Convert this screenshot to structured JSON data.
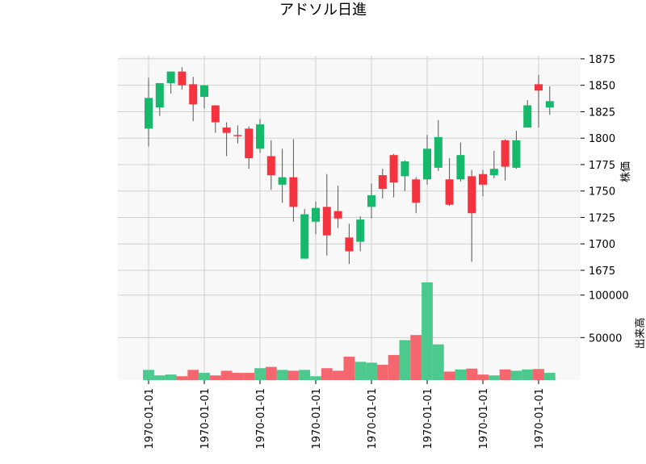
{
  "chart_data": {
    "type": "candlestick",
    "title": "アドソル日進",
    "colors": {
      "up": "#16b86b",
      "down": "#f5333f",
      "up_volume": "#4cc98c",
      "down_volume": "#f6666e",
      "wick": "#555555",
      "panel_bg": "#f8f8f8",
      "grid": "#d0d0d0"
    },
    "price_panel": {
      "ylabel": "株価",
      "ylim": [
        1662,
        1878
      ],
      "yticks": [
        1675,
        1700,
        1725,
        1750,
        1775,
        1800,
        1825,
        1850,
        1875
      ],
      "ytick_labels": [
        "1675",
        "1700",
        "1725",
        "1750",
        "1775",
        "1800",
        "1825",
        "1850",
        "1875"
      ]
    },
    "volume_panel": {
      "ylabel": "出来高",
      "ylim": [
        0,
        113000
      ],
      "yticks": [
        50000,
        100000
      ],
      "ytick_labels": [
        "50000",
        "100000"
      ]
    },
    "x_tick_labels": [
      "1970-01-01",
      "1970-01-01",
      "1970-01-01",
      "1970-01-01",
      "1970-01-01",
      "1970-01-01",
      "1970-01-01",
      "1970-01-01"
    ],
    "x_tick_positions": [
      0,
      5,
      10,
      15,
      20,
      25,
      30,
      35
    ],
    "candles": [
      {
        "open": 1809,
        "high": 1857,
        "low": 1792,
        "close": 1838,
        "volume": 12000
      },
      {
        "open": 1829,
        "high": 1852,
        "low": 1821,
        "close": 1852,
        "volume": 5500
      },
      {
        "open": 1852,
        "high": 1863,
        "low": 1842,
        "close": 1863,
        "volume": 6500
      },
      {
        "open": 1863,
        "high": 1867,
        "low": 1846,
        "close": 1850,
        "volume": 4500
      },
      {
        "open": 1851,
        "high": 1858,
        "low": 1816,
        "close": 1832,
        "volume": 12000
      },
      {
        "open": 1839,
        "high": 1850,
        "low": 1828,
        "close": 1850,
        "volume": 8500
      },
      {
        "open": 1831,
        "high": 1831,
        "low": 1805,
        "close": 1815,
        "volume": 5500
      },
      {
        "open": 1810,
        "high": 1815,
        "low": 1783,
        "close": 1805,
        "volume": 11000
      },
      {
        "open": 1803,
        "high": 1812,
        "low": 1795,
        "close": 1802,
        "volume": 8500
      },
      {
        "open": 1809,
        "high": 1811,
        "low": 1771,
        "close": 1781,
        "volume": 8500
      },
      {
        "open": 1790,
        "high": 1818,
        "low": 1786,
        "close": 1813,
        "volume": 14000
      },
      {
        "open": 1783,
        "high": 1798,
        "low": 1751,
        "close": 1765,
        "volume": 15500
      },
      {
        "open": 1756,
        "high": 1790,
        "low": 1739,
        "close": 1763,
        "volume": 12000
      },
      {
        "open": 1763,
        "high": 1799,
        "low": 1721,
        "close": 1735,
        "volume": 11000
      },
      {
        "open": 1686,
        "high": 1733,
        "low": 1686,
        "close": 1728,
        "volume": 12000
      },
      {
        "open": 1721,
        "high": 1740,
        "low": 1709,
        "close": 1734,
        "volume": 4500
      },
      {
        "open": 1735,
        "high": 1766,
        "low": 1689,
        "close": 1708,
        "volume": 14000
      },
      {
        "open": 1731,
        "high": 1755,
        "low": 1715,
        "close": 1724,
        "volume": 11000
      },
      {
        "open": 1706,
        "high": 1719,
        "low": 1681,
        "close": 1693,
        "volume": 27500
      },
      {
        "open": 1702,
        "high": 1726,
        "low": 1693,
        "close": 1723,
        "volume": 21500
      },
      {
        "open": 1735,
        "high": 1757,
        "low": 1724,
        "close": 1746,
        "volume": 20500
      },
      {
        "open": 1765,
        "high": 1771,
        "low": 1743,
        "close": 1752,
        "volume": 18000
      },
      {
        "open": 1784,
        "high": 1785,
        "low": 1744,
        "close": 1758,
        "volume": 29500
      },
      {
        "open": 1764,
        "high": 1779,
        "low": 1750,
        "close": 1778,
        "volume": 47000
      },
      {
        "open": 1761,
        "high": 1763,
        "low": 1729,
        "close": 1739,
        "volume": 53000
      },
      {
        "open": 1761,
        "high": 1803,
        "low": 1756,
        "close": 1790,
        "volume": 115000
      },
      {
        "open": 1772,
        "high": 1817,
        "low": 1769,
        "close": 1801,
        "volume": 42000
      },
      {
        "open": 1761,
        "high": 1781,
        "low": 1736,
        "close": 1737,
        "volume": 10000
      },
      {
        "open": 1761,
        "high": 1796,
        "low": 1759,
        "close": 1784,
        "volume": 12500
      },
      {
        "open": 1764,
        "high": 1770,
        "low": 1683,
        "close": 1729,
        "volume": 13500
      },
      {
        "open": 1766,
        "high": 1770,
        "low": 1745,
        "close": 1756,
        "volume": 6500
      },
      {
        "open": 1765,
        "high": 1788,
        "low": 1762,
        "close": 1771,
        "volume": 5500
      },
      {
        "open": 1798,
        "high": 1799,
        "low": 1760,
        "close": 1773,
        "volume": 12500
      },
      {
        "open": 1772,
        "high": 1807,
        "low": 1771,
        "close": 1798,
        "volume": 11000
      },
      {
        "open": 1810,
        "high": 1836,
        "low": 1810,
        "close": 1831,
        "volume": 12500
      },
      {
        "open": 1851,
        "high": 1860,
        "low": 1810,
        "close": 1845,
        "volume": 13000
      },
      {
        "open": 1829,
        "high": 1849,
        "low": 1822,
        "close": 1835,
        "volume": 8500
      }
    ]
  }
}
